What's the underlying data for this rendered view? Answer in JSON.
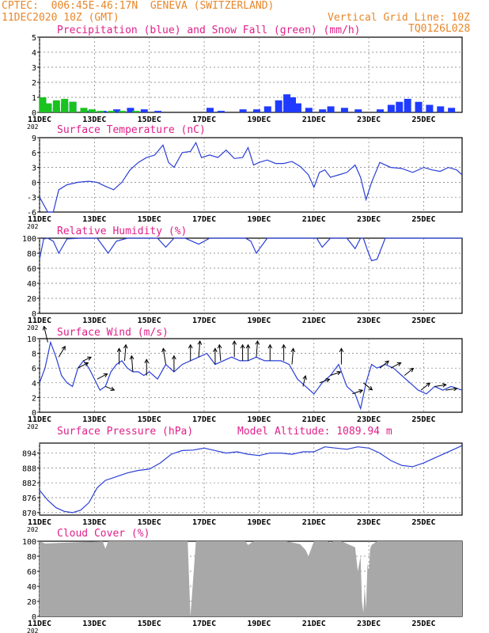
{
  "header": {
    "line1": "CPTEC:  006:45E-46:17N  GENEVA (SWITZERLAND)",
    "line2": "11DEC2020 10Z (GMT)",
    "grid_note": "Vertical Grid Line: 10Z",
    "code": "TQ0126L028"
  },
  "year_label": "202",
  "x_ticks": [
    "11DEC",
    "13DEC",
    "15DEC",
    "17DEC",
    "19DEC",
    "21DEC",
    "23DEC",
    "25DEC"
  ],
  "colors": {
    "header": "#e8872a",
    "title": "#e0208a",
    "precip": "#1f3bff",
    "snow": "#19c21f",
    "line": "#2a3fd6",
    "cloud": "#a8a8a8"
  },
  "chart_data": [
    {
      "type": "bar",
      "title": "Precipitation (blue) and Snow Fall (green) (mm/h)",
      "ylim": [
        0,
        5
      ],
      "yticks": [
        "0",
        "1",
        "2",
        "3",
        "4",
        "5"
      ],
      "x_range_days": [
        11,
        26.4
      ],
      "series": [
        {
          "name": "Precipitation",
          "x": [
            11.1,
            11.3,
            11.6,
            11.9,
            12.2,
            12.8,
            13.3,
            13.8,
            14.3,
            14.8,
            15.3,
            16.8,
            17.2,
            17.6,
            18.4,
            18.9,
            19.3,
            19.7,
            20.0,
            20.2,
            20.4,
            20.8,
            21.3,
            21.6,
            22.1,
            22.6,
            23.4,
            23.8,
            24.1,
            24.4,
            24.8,
            25.2,
            25.6,
            26.0
          ],
          "values": [
            0.9,
            0.5,
            0.3,
            0.6,
            0.7,
            0.1,
            0.1,
            0.2,
            0.3,
            0.2,
            0.1,
            0.0,
            0.3,
            0.1,
            0.2,
            0.2,
            0.4,
            0.8,
            1.2,
            1.0,
            0.6,
            0.3,
            0.2,
            0.4,
            0.3,
            0.2,
            0.2,
            0.5,
            0.7,
            0.9,
            0.7,
            0.5,
            0.4,
            0.3
          ]
        },
        {
          "name": "Snow Fall",
          "x": [
            11.1,
            11.3,
            11.6,
            11.9,
            12.2,
            12.6,
            12.9,
            13.2,
            13.6,
            14.0,
            14.5
          ],
          "values": [
            1.0,
            0.6,
            0.8,
            0.9,
            0.7,
            0.3,
            0.2,
            0.1,
            0.1,
            0.1,
            0.1
          ]
        }
      ]
    },
    {
      "type": "line",
      "title": "Surface Temperature (nC)",
      "ylim": [
        -6,
        9
      ],
      "yticks": [
        "-6",
        "-3",
        "0",
        "3",
        "6",
        "9"
      ],
      "x": [
        11.0,
        11.3,
        11.5,
        11.7,
        12.0,
        12.4,
        12.8,
        13.1,
        13.4,
        13.7,
        14.0,
        14.3,
        14.6,
        14.9,
        15.2,
        15.5,
        15.7,
        15.9,
        16.2,
        16.5,
        16.7,
        16.9,
        17.2,
        17.5,
        17.8,
        18.1,
        18.4,
        18.6,
        18.8,
        19.0,
        19.3,
        19.6,
        19.9,
        20.2,
        20.5,
        20.8,
        21.0,
        21.2,
        21.4,
        21.6,
        21.9,
        22.2,
        22.5,
        22.7,
        22.9,
        23.1,
        23.4,
        23.8,
        24.2,
        24.6,
        25.0,
        25.3,
        25.6,
        25.9,
        26.2,
        26.4
      ],
      "values": [
        -3.0,
        -6.0,
        -6.0,
        -1.5,
        -0.5,
        0.0,
        0.2,
        0.0,
        -0.8,
        -1.5,
        0.0,
        2.5,
        4.0,
        5.0,
        5.5,
        7.5,
        4.0,
        3.0,
        6.0,
        6.2,
        8.0,
        5.0,
        5.5,
        5.0,
        6.5,
        4.8,
        5.0,
        7.0,
        3.5,
        4.0,
        4.5,
        3.8,
        3.8,
        4.2,
        3.2,
        1.5,
        -1.0,
        2.0,
        2.5,
        1.0,
        1.5,
        2.0,
        3.5,
        1.0,
        -3.5,
        0.0,
        4.0,
        3.0,
        2.8,
        2.0,
        3.0,
        2.5,
        2.2,
        3.0,
        2.5,
        1.5
      ]
    },
    {
      "type": "line",
      "title": "Relative Humidity (%)",
      "ylim": [
        0,
        100
      ],
      "yticks": [
        "0",
        "20",
        "40",
        "60",
        "80",
        "100"
      ],
      "x": [
        11.0,
        11.15,
        11.3,
        11.5,
        11.7,
        12.0,
        12.5,
        12.9,
        13.1,
        13.3,
        13.5,
        13.8,
        14.2,
        14.6,
        15.0,
        15.3,
        15.6,
        15.9,
        16.3,
        16.8,
        17.2,
        17.6,
        18.0,
        18.3,
        18.5,
        18.7,
        18.9,
        19.3,
        19.7,
        20.1,
        20.5,
        20.9,
        21.1,
        21.3,
        21.6,
        21.9,
        22.2,
        22.5,
        22.7,
        22.8,
        22.95,
        23.1,
        23.3,
        23.6,
        24.0,
        24.5,
        25.0,
        25.5,
        26.0,
        26.4
      ],
      "values": [
        72,
        99,
        100,
        96,
        80,
        99,
        100,
        100,
        100,
        90,
        80,
        96,
        100,
        100,
        100,
        100,
        88,
        100,
        100,
        92,
        100,
        100,
        100,
        100,
        100,
        96,
        80,
        100,
        100,
        100,
        100,
        100,
        100,
        88,
        100,
        100,
        100,
        86,
        100,
        100,
        84,
        70,
        72,
        100,
        100,
        100,
        100,
        100,
        100,
        100
      ]
    },
    {
      "type": "line",
      "title": "Surface Wind (m/s)",
      "ylim": [
        0,
        10
      ],
      "yticks": [
        "0",
        "2",
        "4",
        "6",
        "8",
        "10"
      ],
      "x": [
        11.0,
        11.2,
        11.4,
        11.6,
        11.8,
        12.0,
        12.2,
        12.4,
        12.6,
        12.8,
        13.0,
        13.2,
        13.4,
        13.6,
        13.8,
        14.0,
        14.2,
        14.4,
        14.6,
        14.8,
        15.0,
        15.3,
        15.6,
        15.9,
        16.2,
        16.5,
        16.8,
        17.1,
        17.4,
        17.7,
        18.0,
        18.3,
        18.6,
        18.9,
        19.2,
        19.5,
        19.8,
        20.1,
        20.4,
        20.7,
        21.0,
        21.3,
        21.6,
        21.9,
        22.2,
        22.5,
        22.7,
        22.9,
        23.1,
        23.3,
        23.6,
        23.9,
        24.2,
        24.5,
        24.8,
        25.1,
        25.4,
        25.7,
        26.0,
        26.4
      ],
      "values": [
        4.0,
        6.0,
        9.5,
        7.5,
        5.0,
        4.0,
        3.5,
        6.0,
        7.0,
        6.0,
        4.5,
        3.0,
        3.5,
        5.5,
        6.5,
        7.0,
        6.0,
        5.5,
        5.5,
        5.0,
        5.5,
        4.5,
        6.5,
        5.5,
        6.5,
        7.0,
        7.5,
        8.0,
        6.5,
        7.0,
        7.5,
        7.0,
        7.0,
        7.5,
        7.0,
        7.0,
        7.0,
        6.5,
        4.5,
        3.5,
        2.5,
        4.0,
        5.0,
        6.5,
        3.5,
        2.5,
        0.5,
        4.0,
        6.5,
        6.0,
        6.5,
        6.0,
        5.0,
        4.0,
        3.0,
        2.5,
        3.5,
        3.0,
        3.5,
        3.0
      ],
      "arrows_x": [
        11.3,
        11.7,
        12.4,
        12.6,
        13.1,
        13.4,
        13.9,
        14.1,
        14.4,
        14.9,
        15.6,
        15.9,
        16.5,
        16.8,
        17.4,
        17.6,
        18.1,
        18.4,
        18.6,
        18.9,
        19.4,
        19.9,
        20.2,
        20.6,
        21.2,
        21.6,
        22.0,
        22.4,
        22.8,
        23.4,
        23.8,
        24.3,
        24.9,
        25.4,
        25.8
      ],
      "arrows_dx": [
        -0.3,
        0.5,
        0.8,
        0.6,
        0.8,
        0.7,
        0.0,
        0.1,
        -0.1,
        0.0,
        -0.2,
        0.0,
        0.0,
        0.1,
        0.0,
        -0.1,
        0.0,
        0.0,
        0.0,
        0.1,
        0.0,
        0.0,
        0.1,
        0.2,
        0.8,
        0.8,
        0.0,
        0.8,
        0.7,
        0.7,
        0.8,
        0.7,
        0.7,
        0.9,
        0.9
      ],
      "arrows_dy": [
        0.9,
        0.6,
        0.3,
        0.2,
        0.3,
        -0.2,
        0.9,
        0.9,
        0.9,
        0.9,
        0.9,
        0.9,
        0.9,
        0.9,
        0.9,
        0.9,
        0.9,
        0.9,
        0.9,
        0.9,
        0.9,
        0.9,
        0.9,
        0.6,
        0.2,
        0.2,
        0.9,
        0.2,
        -0.4,
        0.4,
        0.3,
        0.4,
        0.4,
        0.1,
        0.1
      ]
    },
    {
      "type": "line",
      "title": "Surface Pressure (hPa)",
      "annotation": "Model Altitude: 1089.94  m",
      "ylim": [
        869,
        898
      ],
      "yticks": [
        "870",
        "876",
        "882",
        "888",
        "894"
      ],
      "ytick_values": [
        870,
        876,
        882,
        888,
        894
      ],
      "x": [
        11.0,
        11.3,
        11.6,
        11.9,
        12.2,
        12.5,
        12.8,
        13.1,
        13.4,
        13.8,
        14.2,
        14.6,
        15.0,
        15.4,
        15.8,
        16.2,
        16.6,
        17.0,
        17.4,
        17.8,
        18.2,
        18.6,
        19.0,
        19.4,
        19.8,
        20.2,
        20.6,
        21.0,
        21.4,
        21.8,
        22.2,
        22.6,
        23.0,
        23.4,
        23.8,
        24.2,
        24.6,
        25.0,
        25.4,
        25.8,
        26.2,
        26.4
      ],
      "values": [
        879.0,
        875.0,
        872.0,
        870.5,
        870.0,
        871.0,
        874.0,
        880.0,
        883.0,
        884.5,
        886.0,
        887.0,
        887.5,
        890.0,
        893.5,
        895.0,
        895.2,
        896.0,
        895.0,
        894.0,
        894.5,
        893.5,
        893.0,
        894.0,
        894.0,
        893.5,
        894.5,
        894.5,
        896.5,
        896.0,
        895.5,
        896.5,
        896.0,
        894.0,
        891.0,
        889.0,
        888.5,
        890.0,
        892.0,
        894.0,
        896.0,
        897.0
      ]
    },
    {
      "type": "area",
      "title": "Cloud Cover (%)",
      "ylim": [
        0,
        100
      ],
      "yticks": [
        "0",
        "20",
        "40",
        "60",
        "80",
        "100"
      ],
      "x": [
        11.0,
        11.2,
        13.3,
        13.4,
        13.5,
        13.7,
        16.0,
        16.4,
        16.5,
        16.7,
        17.0,
        18.5,
        18.6,
        18.8,
        18.9,
        20.0,
        20.5,
        20.7,
        20.8,
        20.9,
        21.0,
        21.5,
        21.6,
        21.7,
        22.0,
        22.5,
        22.6,
        22.7,
        22.75,
        22.8,
        22.85,
        22.9,
        22.95,
        23.0,
        23.05,
        23.1,
        23.3,
        26.4
      ],
      "values": [
        100,
        97,
        100,
        90,
        100,
        100,
        100,
        100,
        0,
        100,
        100,
        100,
        95,
        100,
        100,
        100,
        96,
        88,
        80,
        90,
        100,
        100,
        98,
        100,
        100,
        92,
        60,
        80,
        20,
        5,
        40,
        10,
        70,
        60,
        90,
        95,
        100,
        100
      ]
    }
  ]
}
